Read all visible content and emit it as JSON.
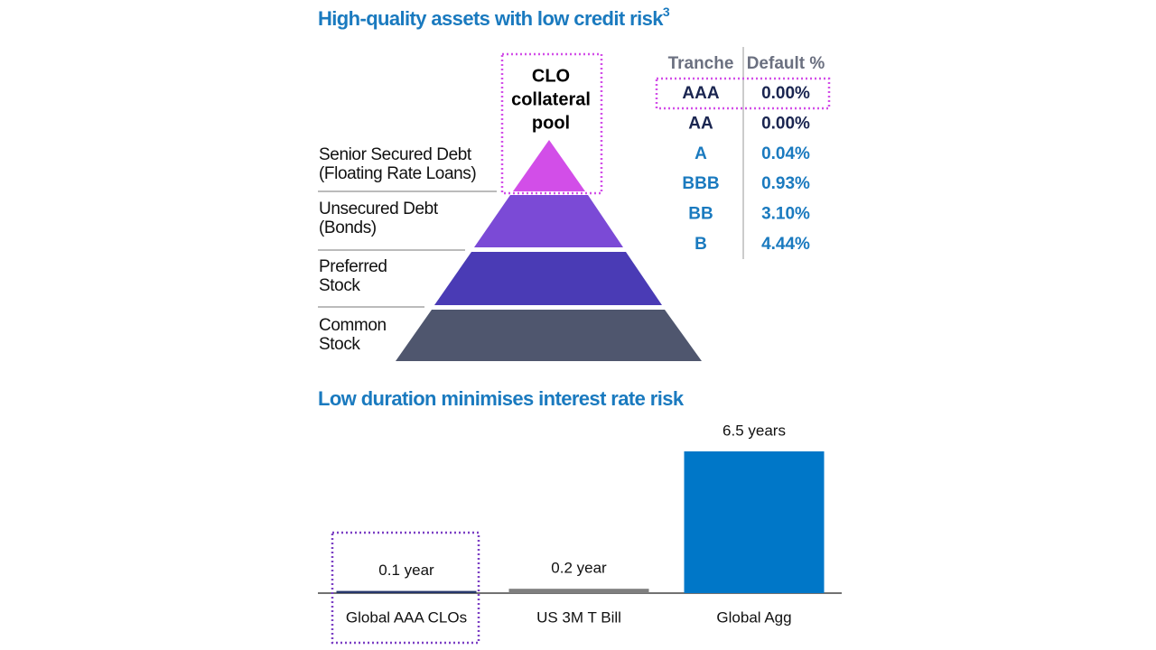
{
  "section1": {
    "title": "High-quality assets with low credit risk",
    "title_superscript": "3",
    "pyramid": {
      "apex_label": [
        "CLO",
        "collateral",
        "pool"
      ],
      "layers": [
        [
          "Senior Secured Debt",
          "(Floating Rate Loans)"
        ],
        [
          "Unsecured Debt",
          "(Bonds)"
        ],
        [
          "Preferred",
          "Stock"
        ],
        [
          "Common",
          "Stock"
        ]
      ]
    },
    "table": {
      "header": [
        "Tranche",
        "Default %"
      ],
      "rows": [
        [
          "AAA",
          "0.00%"
        ],
        [
          "AA",
          "0.00%"
        ],
        [
          "A",
          "0.04%"
        ],
        [
          "BBB",
          "0.93%"
        ],
        [
          "BB",
          "3.10%"
        ],
        [
          "B",
          "4.44%"
        ]
      ]
    }
  },
  "chart_data": {
    "type": "bar",
    "title": "Low duration minimises interest rate risk",
    "categories": [
      "Global AAA CLOs",
      "US 3M T Bill",
      "Global Agg"
    ],
    "values": [
      0.1,
      0.2,
      6.5
    ],
    "value_labels": [
      "0.1 year",
      "0.2 year",
      "6.5 years"
    ],
    "colors": [
      "#26366b",
      "#7f7f7f",
      "#0077c8"
    ]
  }
}
